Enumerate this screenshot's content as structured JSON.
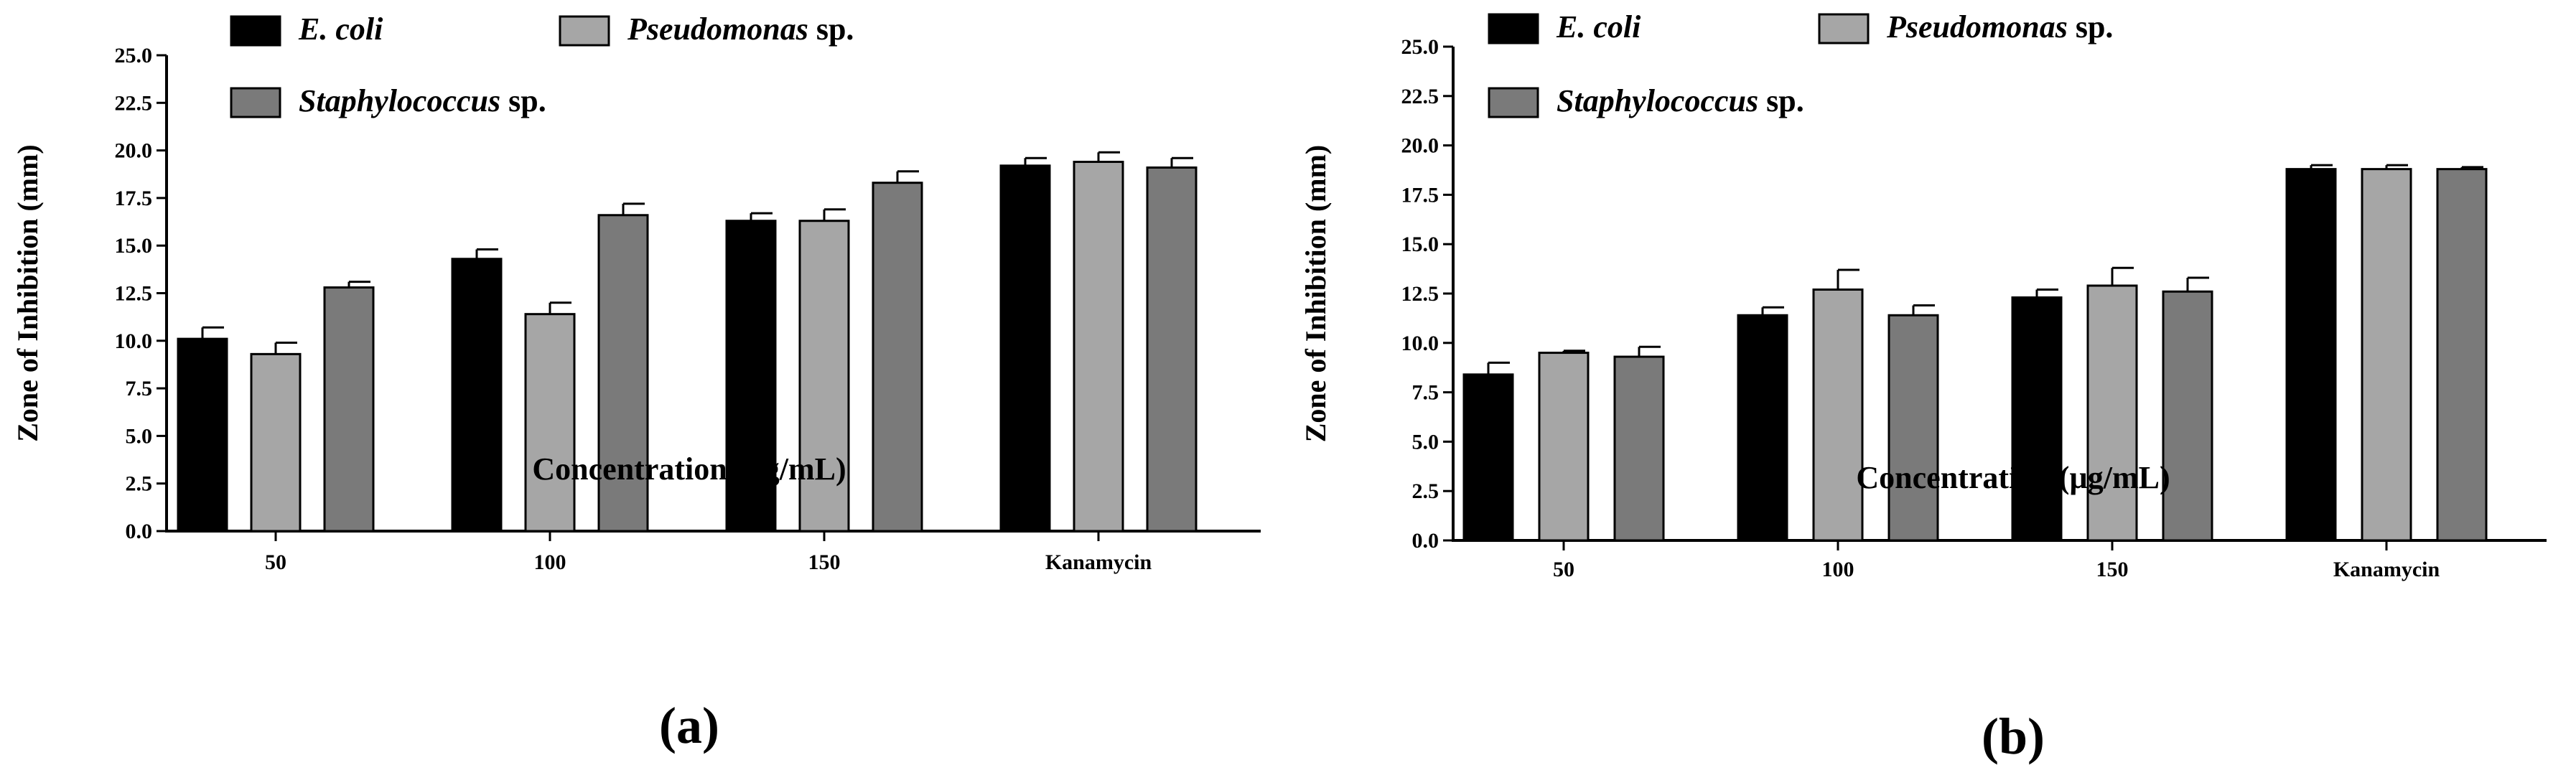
{
  "chart_data": [
    {
      "type": "bar",
      "panel_label": "(a)",
      "categories": [
        "50",
        "100",
        "150",
        "Kanamycin"
      ],
      "xlabel": "Concentration (µg/mL)",
      "ylabel": "Zone of Inhibition (mm)",
      "ylim": [
        0,
        25
      ],
      "yticks": [
        "0.0",
        "2.5",
        "5.0",
        "7.5",
        "10.0",
        "12.5",
        "15.0",
        "17.5",
        "20.0",
        "22.5",
        "25.0"
      ],
      "legend_position": "top",
      "series": [
        {
          "name_italic": "E. coli",
          "name_suffix": "",
          "color": "#000000",
          "values": [
            10.1,
            14.3,
            16.3,
            19.2
          ],
          "errors": [
            0.6,
            0.5,
            0.4,
            0.4
          ]
        },
        {
          "name_italic": "Pseudomonas",
          "name_suffix": " sp.",
          "color": "#a6a6a6",
          "values": [
            9.3,
            11.4,
            16.3,
            19.4
          ],
          "errors": [
            0.6,
            0.6,
            0.6,
            0.5
          ]
        },
        {
          "name_italic": "Staphylococcus",
          "name_suffix": " sp.",
          "color": "#7a7a7a",
          "values": [
            12.8,
            16.6,
            18.3,
            19.1
          ],
          "errors": [
            0.3,
            0.6,
            0.6,
            0.5
          ]
        }
      ]
    },
    {
      "type": "bar",
      "panel_label": "(b)",
      "categories": [
        "50",
        "100",
        "150",
        "Kanamycin"
      ],
      "xlabel": "Concentration (µg/mL)",
      "ylabel": "Zone of Inhibition (mm)",
      "ylim": [
        0,
        25
      ],
      "yticks": [
        "0.0",
        "2.5",
        "5.0",
        "7.5",
        "10.0",
        "12.5",
        "15.0",
        "17.5",
        "20.0",
        "22.5",
        "25.0"
      ],
      "legend_position": "top",
      "series": [
        {
          "name_italic": "E. coli",
          "name_suffix": "",
          "color": "#000000",
          "values": [
            8.4,
            11.4,
            12.3,
            18.8
          ],
          "errors": [
            0.6,
            0.4,
            0.4,
            0.2
          ]
        },
        {
          "name_italic": "Pseudomonas",
          "name_suffix": " sp.",
          "color": "#a6a6a6",
          "values": [
            9.5,
            12.7,
            12.9,
            18.8
          ],
          "errors": [
            0.1,
            1.0,
            0.9,
            0.2
          ]
        },
        {
          "name_italic": "Staphylococcus",
          "name_suffix": " sp.",
          "color": "#7a7a7a",
          "values": [
            9.3,
            11.4,
            12.6,
            18.8
          ],
          "errors": [
            0.5,
            0.5,
            0.7,
            0.1
          ]
        }
      ]
    }
  ]
}
